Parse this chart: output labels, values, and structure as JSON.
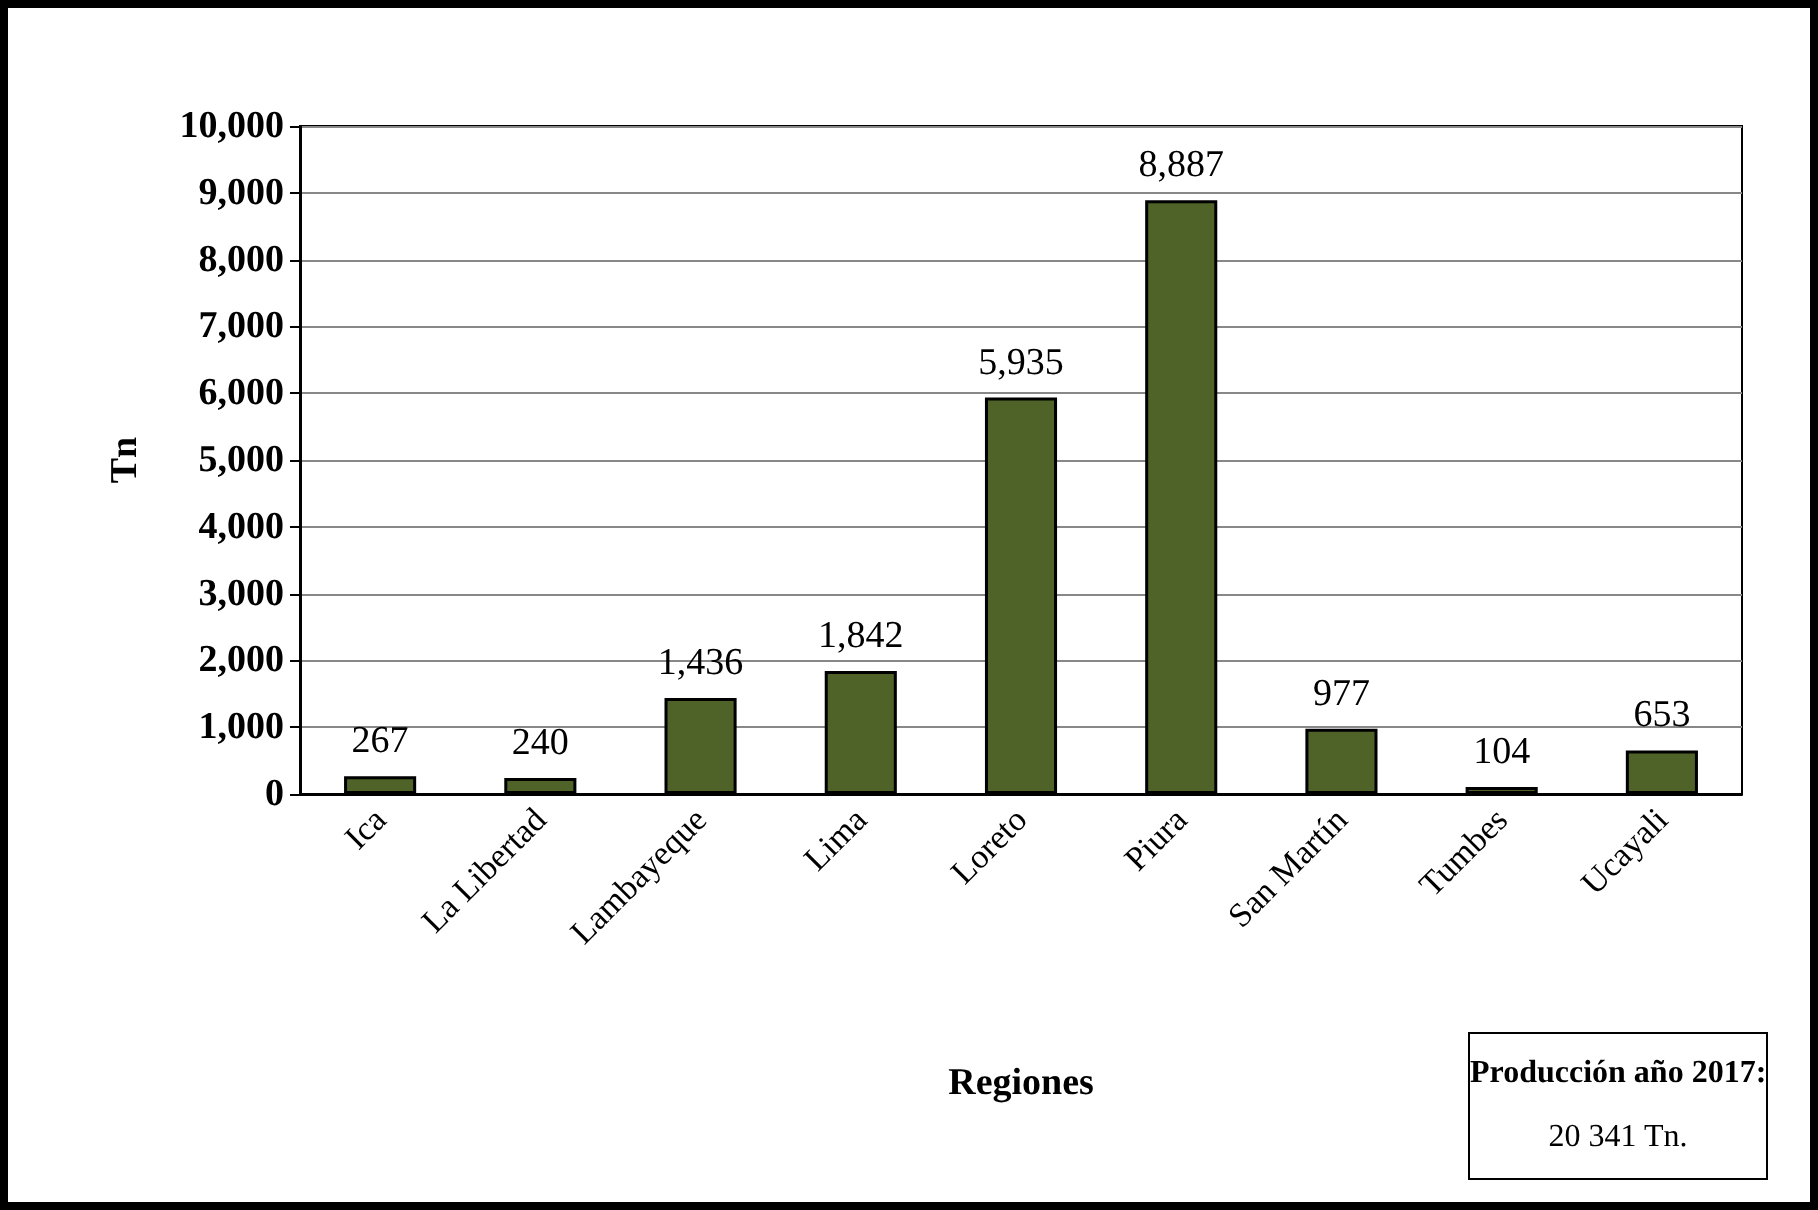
{
  "chart_data": {
    "type": "bar",
    "ylabel": "Tn",
    "xlabel": "Regiones",
    "categories": [
      "Ica",
      "La Libertad",
      "Lambayeque",
      "Lima",
      "Loreto",
      "Piura",
      "San Martín",
      "Tumbes",
      "Ucayali"
    ],
    "values": [
      267,
      240,
      1436,
      1842,
      5935,
      8887,
      977,
      104,
      653
    ],
    "value_labels": [
      "267",
      "240",
      "1,436",
      "1,842",
      "5,935",
      "8,887",
      "977",
      "104",
      "653"
    ],
    "color": "#4f6228",
    "ylim": [
      0,
      10000
    ],
    "yticks": [
      {
        "value": 0,
        "label": "0"
      },
      {
        "value": 1000,
        "label": "1,000"
      },
      {
        "value": 2000,
        "label": "2,000"
      },
      {
        "value": 3000,
        "label": "3,000"
      },
      {
        "value": 4000,
        "label": "4,000"
      },
      {
        "value": 5000,
        "label": "5,000"
      },
      {
        "value": 6000,
        "label": "6,000"
      },
      {
        "value": 7000,
        "label": "7,000"
      },
      {
        "value": 8000,
        "label": "8,000"
      },
      {
        "value": 9000,
        "label": "9,000"
      },
      {
        "value": 10000,
        "label": "10,000"
      }
    ],
    "grid": "y",
    "annotations": [
      "Producción año 2017:",
      "20 341 Tn."
    ]
  }
}
